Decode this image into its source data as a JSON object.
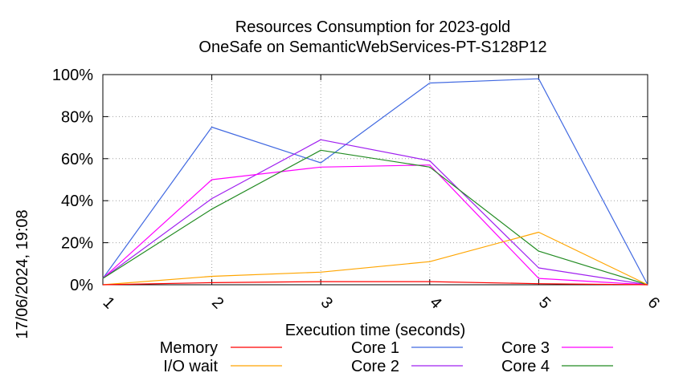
{
  "chart_data": {
    "type": "line",
    "title": "Resources Consumption for 2023-gold",
    "subtitle": "OneSafe on SemanticWebServices-PT-S128P12",
    "xlabel": "Execution time (seconds)",
    "ylabel": "",
    "side_label": "17/06/2024, 19:08",
    "xlim": [
      1,
      6
    ],
    "ylim": [
      0,
      100
    ],
    "x_ticks": [
      "1",
      "2",
      "3",
      "4",
      "5",
      "6"
    ],
    "y_ticks": [
      "0%",
      "20%",
      "40%",
      "60%",
      "80%",
      "100%"
    ],
    "grid": true,
    "legend_position": "bottom",
    "x": [
      1,
      2,
      3,
      4,
      5,
      6
    ],
    "series": [
      {
        "name": "Memory",
        "color": "#ff0000",
        "values": [
          0,
          1,
          1.5,
          1.5,
          0.5,
          0
        ]
      },
      {
        "name": "I/O wait",
        "color": "#ffa500",
        "values": [
          0,
          4,
          6,
          11,
          25,
          0
        ]
      },
      {
        "name": "Core 1",
        "color": "#4169e1",
        "values": [
          3,
          75,
          58,
          96,
          98,
          0
        ]
      },
      {
        "name": "Core 2",
        "color": "#a020f0",
        "values": [
          3,
          41,
          69,
          59,
          8,
          0
        ]
      },
      {
        "name": "Core 3",
        "color": "#ff00ff",
        "values": [
          3,
          50,
          56,
          57,
          3,
          0
        ]
      },
      {
        "name": "Core 4",
        "color": "#228b22",
        "values": [
          3,
          36,
          64,
          56,
          16,
          0
        ]
      }
    ]
  }
}
